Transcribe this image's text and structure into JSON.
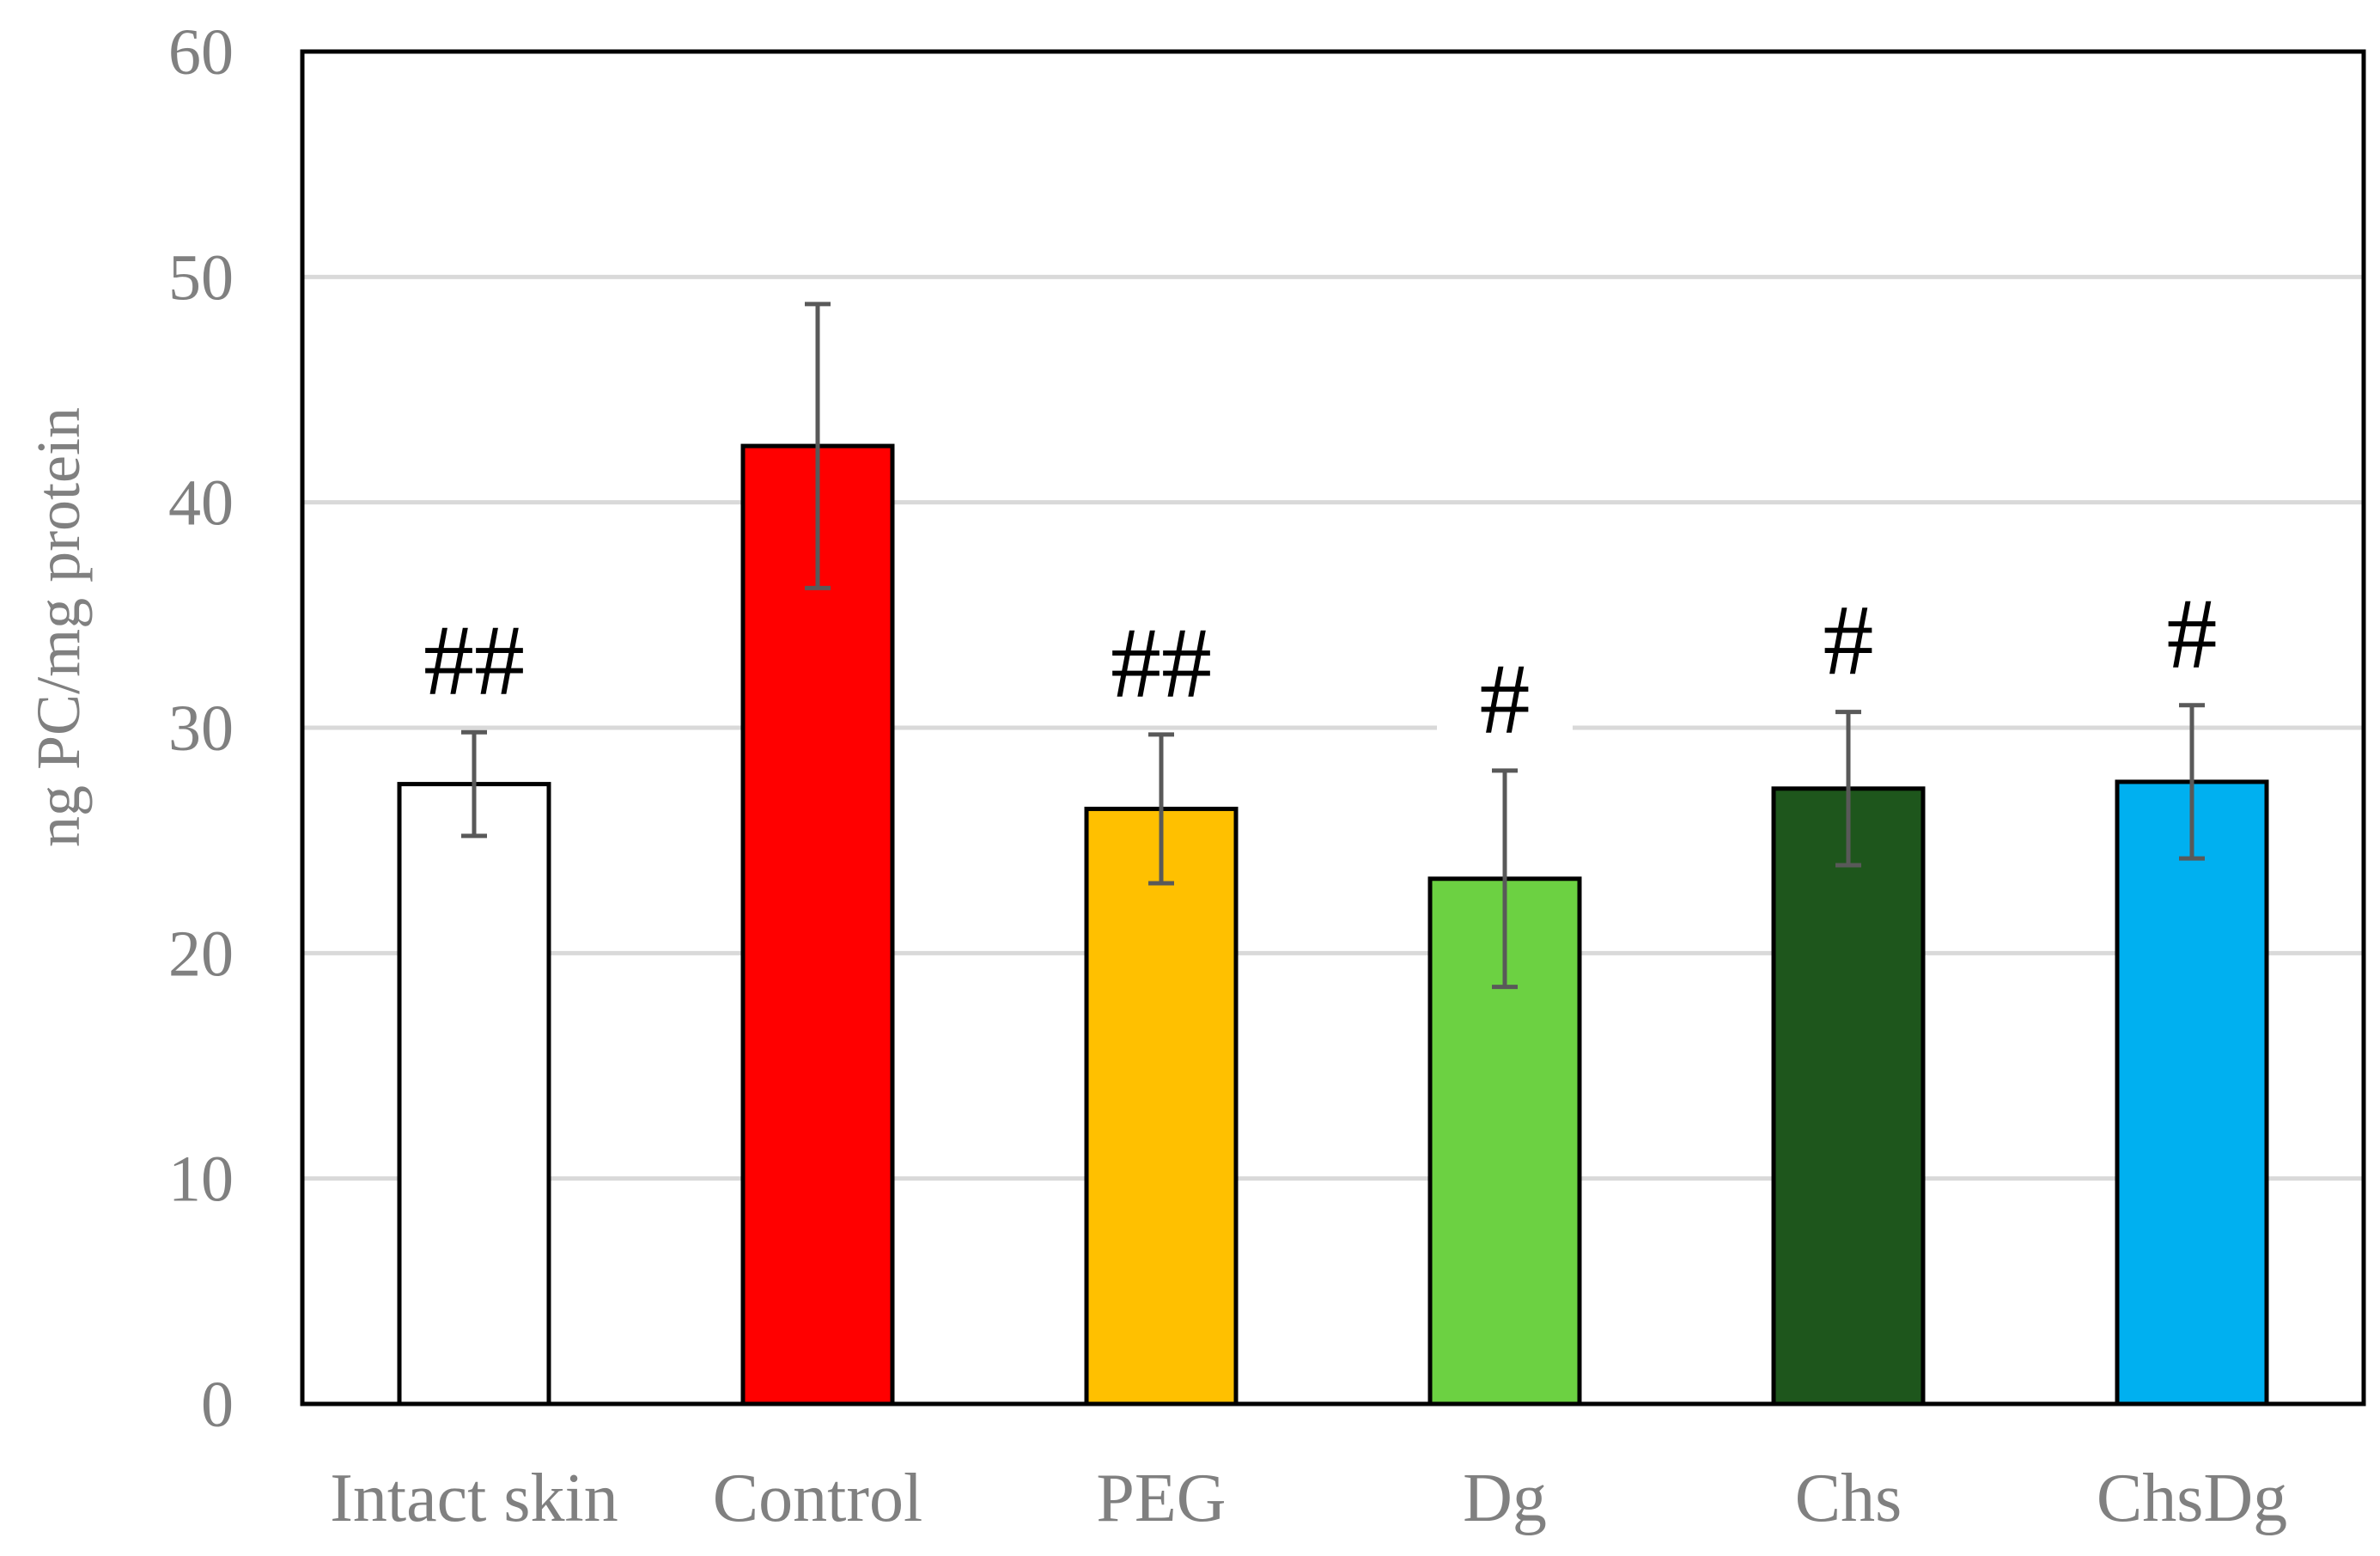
{
  "chart_data": {
    "type": "bar",
    "title": "",
    "xlabel": "",
    "ylabel": "ng PC/mg protein",
    "ylim": [
      0,
      60
    ],
    "yticks": [
      0,
      10,
      20,
      30,
      40,
      50,
      60
    ],
    "grid": true,
    "legend": "none",
    "categories": [
      "Intact skin",
      "Control",
      "PEG",
      "Dg",
      "Chs",
      "ChsDg"
    ],
    "values": [
      27.5,
      42.5,
      26.4,
      23.3,
      27.3,
      27.6
    ],
    "errors": [
      2.3,
      6.3,
      3.3,
      4.8,
      3.4,
      3.4
    ],
    "significance": [
      "##",
      "",
      "##",
      "#",
      "#",
      "#"
    ],
    "colors": [
      "#FFFFFF",
      "#FF0000",
      "#FFC000",
      "#6CD142",
      "#1E561C",
      "#00B0F0"
    ],
    "error_color": "#595959",
    "grid_color": "#D9D9D9",
    "axis_color": "#000000"
  }
}
